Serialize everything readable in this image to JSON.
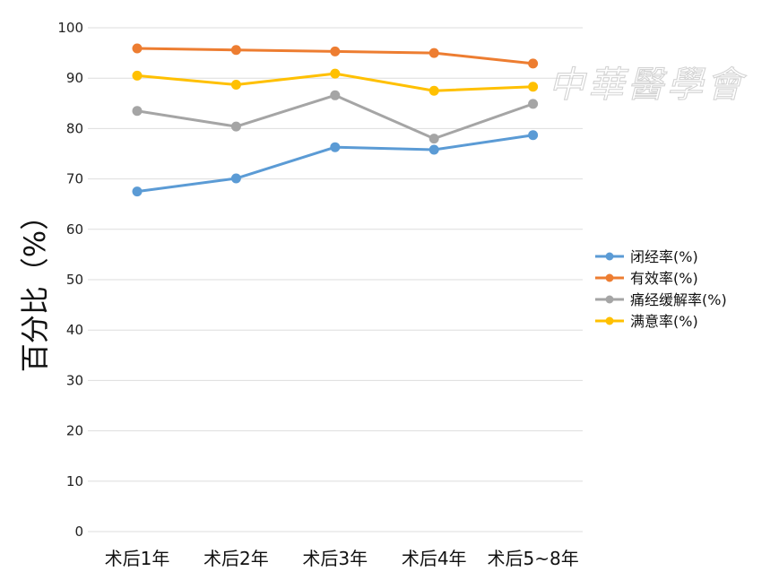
{
  "watermark": "中華醫學會",
  "chart_data": {
    "type": "line",
    "ylabel": "百分比（%）",
    "xlabel": "",
    "ylim": [
      0,
      100
    ],
    "yticks": [
      0,
      10,
      20,
      30,
      40,
      50,
      60,
      70,
      80,
      90,
      100
    ],
    "grid": true,
    "legend_position": "right",
    "categories": [
      "术后1年",
      "术后2年",
      "术后3年",
      "术后4年",
      "术后5~8年"
    ],
    "series": [
      {
        "name": "闭经率(%)",
        "color": "#5b9bd5",
        "values": [
          67.5,
          70.1,
          76.3,
          75.8,
          78.7
        ]
      },
      {
        "name": "有效率(%)",
        "color": "#ed7d31",
        "values": [
          95.9,
          95.6,
          95.3,
          95.0,
          92.9
        ]
      },
      {
        "name": "痛经缓解率(%)",
        "color": "#a5a5a5",
        "values": [
          83.5,
          80.4,
          86.6,
          78.0,
          84.9
        ]
      },
      {
        "name": "满意率(%)",
        "color": "#ffc000",
        "values": [
          90.5,
          88.7,
          90.9,
          87.5,
          88.3
        ]
      }
    ]
  }
}
